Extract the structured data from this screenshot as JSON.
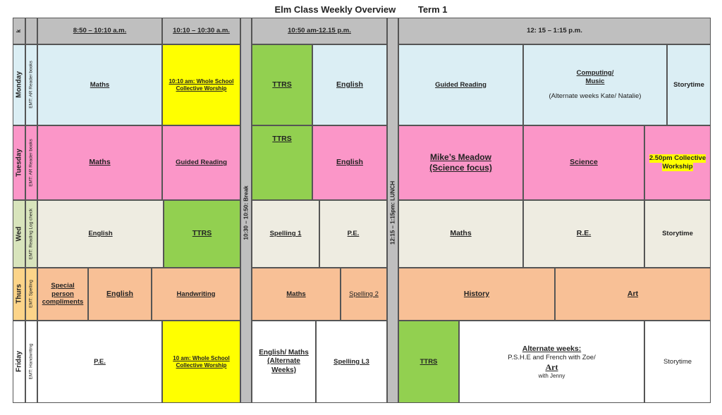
{
  "title": "Elm Class Weekly Overview",
  "term": "Term 1",
  "header": {
    "corner": "k",
    "col1": "8:50 – 10:10 a.m.",
    "col2": "10:10 – 10:30 a.m.",
    "col3": "10:50 am-12.15 p.m.",
    "col4": "12: 15 – 1:15 p.m."
  },
  "breaks": {
    "morning": "10:30 – 10:50: Break",
    "lunch": "12:15 – 1:15pm: LUNCH"
  },
  "days": {
    "monday": {
      "name": "Monday",
      "emt": "EMT: AR Reader books"
    },
    "tuesday": {
      "name": "Tuesday",
      "emt": "EMT: AR Reader books"
    },
    "wednesday": {
      "name": "Wed",
      "emt": "EMT: Reading Log check"
    },
    "thursday": {
      "name": "Thurs",
      "emt": "EMT: Spelling"
    },
    "friday": {
      "name": "Friday",
      "emt": "EMT: Handwriting"
    }
  },
  "monday": {
    "p1": "Maths",
    "worship": "10:10 am: Whole School Collective Worship",
    "ttrs": "TTRS",
    "english": "English",
    "guided": "Guided Reading",
    "computing_l1": "Computing/",
    "computing_l2": "Music",
    "computing_note": "(Alternate weeks Kate/ Natalie)",
    "storytime": "Storytime"
  },
  "tuesday": {
    "p1": "Maths",
    "guided": "Guided Reading",
    "ttrs": "TTRS",
    "english": "English",
    "meadow_l1": "Mike’s Meadow",
    "meadow_l2": "(Science focus)",
    "science": "Science",
    "worship_l1": "2.50pm Collective",
    "worship_l2": "Workship"
  },
  "wednesday": {
    "english": "English",
    "ttrs": "TTRS",
    "spelling": "Spelling 1",
    "pe": "P.E.",
    "maths": "Maths",
    "re": "R.E.",
    "storytime": "Storytime"
  },
  "thursday": {
    "special_l1": "Special",
    "special_l2": "person",
    "special_l3": "compliments",
    "english": "English",
    "handwriting": "Handwriting",
    "maths": "Maths",
    "spelling": "Spelling 2",
    "history": "History",
    "art": "Art"
  },
  "friday": {
    "pe": "P.E.",
    "worship": "10 am: Whole School Collective Worship",
    "eng_l1": "English/ Maths",
    "eng_l2": "(Alternate",
    "eng_l3": "Weeks)",
    "spelling": "Spelling L3",
    "ttrs": "TTRS",
    "alt_title": "Alternate weeks:",
    "alt_line1": "P.S.H.E and French with Zoe/",
    "alt_art": "Art",
    "alt_with": "with Jenny",
    "storytime": "Storytime"
  }
}
